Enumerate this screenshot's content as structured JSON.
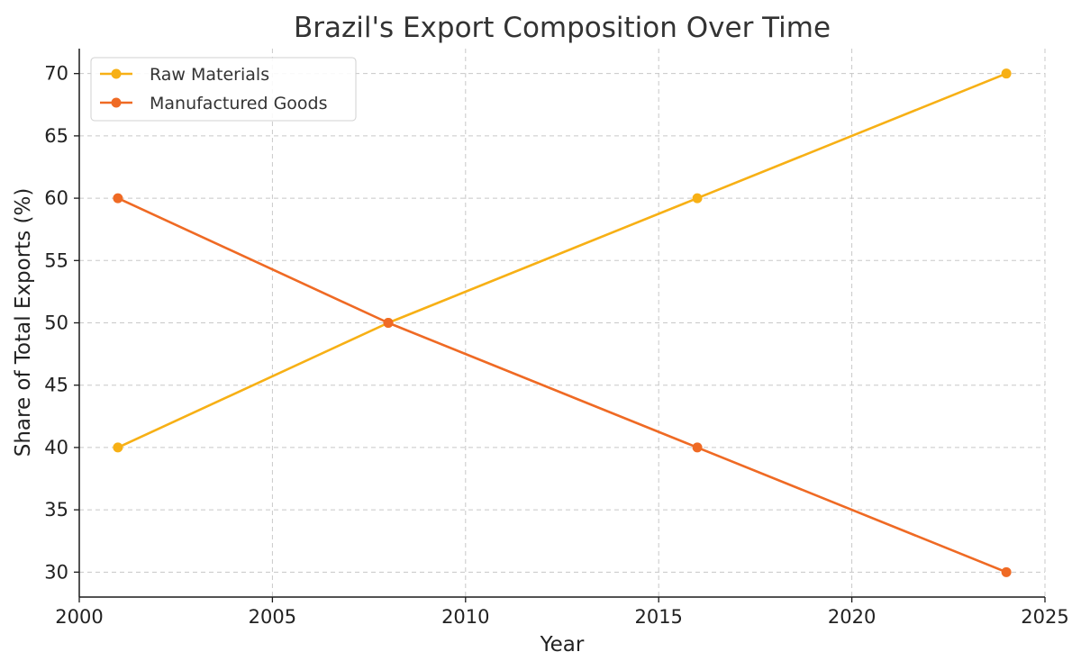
{
  "chart_data": {
    "type": "line",
    "title": "Brazil's Export Composition Over Time",
    "xlabel": "Year",
    "ylabel": "Share of Total Exports (%)",
    "x": [
      2001,
      2008,
      2016,
      2024
    ],
    "xlim": [
      2000,
      2025
    ],
    "ylim": [
      28,
      72
    ],
    "xticks": [
      2000,
      2005,
      2010,
      2015,
      2020,
      2025
    ],
    "yticks": [
      30,
      35,
      40,
      45,
      50,
      55,
      60,
      65,
      70
    ],
    "grid": true,
    "legend_position": "top-left",
    "series": [
      {
        "name": "Raw Materials",
        "values": [
          40,
          50,
          60,
          70
        ],
        "color": "#F7B015"
      },
      {
        "name": "Manufactured Goods",
        "values": [
          60,
          50,
          40,
          30
        ],
        "color": "#EF6A24"
      }
    ]
  }
}
